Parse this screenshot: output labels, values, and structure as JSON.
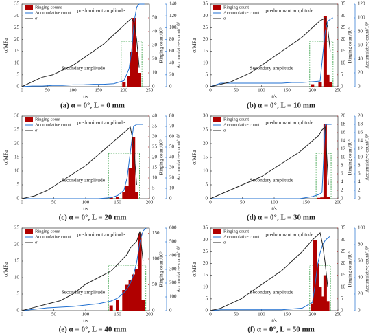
{
  "chart_data": [
    {
      "type": "combo",
      "caption": "(a) α = 0°, L = 0 mm",
      "xlabel": "t/s",
      "ylabel": "σ/MPa",
      "y2label": "Ringing count/10³",
      "y3label": "Accumulative count/10³",
      "annotations": [
        "predominant amplitude",
        "Secondary amplitude"
      ],
      "xlim": [
        0,
        250
      ],
      "xticks": [
        0,
        50,
        100,
        150,
        200,
        250
      ],
      "ylim": [
        0,
        35
      ],
      "yticks": [
        0,
        5,
        10,
        15,
        20,
        25,
        30,
        35
      ],
      "y2lim": [
        0,
        60
      ],
      "y2ticks": [
        0,
        10,
        20,
        30,
        40,
        50
      ],
      "y3lim": [
        0,
        140
      ],
      "y3ticks": [
        0,
        20,
        40,
        60,
        80,
        100,
        120,
        140
      ],
      "x": [
        0,
        20,
        40,
        60,
        80,
        100,
        120,
        140,
        160,
        180,
        200,
        210,
        215,
        220,
        225,
        230,
        240
      ],
      "series": [
        {
          "name": "Ringing counts",
          "mark": "bar",
          "axis": "y2",
          "color": "#b00000",
          "values": [
            null,
            null,
            null,
            null,
            null,
            null,
            null,
            null,
            null,
            null,
            3,
            8,
            25,
            50,
            25,
            10,
            null
          ]
        },
        {
          "name": "Accumulative count",
          "mark": "line",
          "axis": "y3",
          "color": "#1f6fd0",
          "values": [
            0,
            1,
            1,
            2,
            2,
            3,
            3,
            4,
            4,
            5,
            10,
            30,
            60,
            110,
            135,
            140,
            140
          ]
        },
        {
          "name": "σ",
          "mark": "line",
          "axis": "y",
          "color": "#222222",
          "values": [
            0,
            2,
            4,
            5,
            7,
            9,
            12,
            15,
            18,
            22,
            26,
            28,
            29,
            27,
            20,
            8,
            null
          ]
        }
      ]
    },
    {
      "type": "combo",
      "caption": "(b) α = 0°, L = 10 mm",
      "xlabel": "t/s",
      "ylabel": "σ/MPa",
      "y2label": "Ringing count/10³",
      "y3label": "Accumulative count/10³",
      "annotations": [
        "predominant amplitude",
        "Secondary amplitude"
      ],
      "xlim": [
        0,
        250
      ],
      "xticks": [
        0,
        50,
        100,
        150,
        200,
        250
      ],
      "ylim": [
        0,
        35
      ],
      "yticks": [
        0,
        5,
        10,
        15,
        20,
        25,
        30,
        35
      ],
      "y2lim": [
        0,
        35
      ],
      "y2ticks": [
        0,
        5,
        10,
        15,
        20,
        25,
        30,
        35
      ],
      "y3lim": [
        0,
        120
      ],
      "y3ticks": [
        0,
        20,
        40,
        60,
        80,
        100,
        120
      ],
      "x": [
        0,
        20,
        40,
        60,
        80,
        100,
        120,
        140,
        160,
        180,
        200,
        215,
        225,
        230,
        235,
        240
      ],
      "series": [
        {
          "name": "Ringing count",
          "mark": "bar",
          "axis": "y2",
          "color": "#b00000",
          "values": [
            null,
            null,
            null,
            null,
            null,
            null,
            null,
            null,
            null,
            null,
            1,
            2,
            30,
            5,
            2,
            null
          ]
        },
        {
          "name": "Accumulative count",
          "mark": "line",
          "axis": "y3",
          "color": "#1f6fd0",
          "values": [
            0,
            5,
            5,
            5,
            5,
            5,
            5,
            5,
            6,
            6,
            7,
            8,
            80,
            95,
            98,
            100
          ]
        },
        {
          "name": "σ",
          "mark": "line",
          "axis": "y",
          "color": "#222222",
          "values": [
            0,
            1,
            2,
            4,
            6,
            9,
            12,
            15,
            18,
            21,
            25,
            28,
            29,
            25,
            15,
            null
          ]
        }
      ]
    },
    {
      "type": "combo",
      "caption": "(c) α = 0°, L = 20 mm",
      "xlabel": "t/s",
      "ylabel": "σ/MPa",
      "y2label": "Ringing count/10³",
      "y3label": "Accumulative count/10³",
      "annotations": [
        "predominant amplitude",
        "Secondary amplitude"
      ],
      "xlim": [
        0,
        200
      ],
      "xticks": [
        0,
        50,
        100,
        150,
        200
      ],
      "ylim": [
        0,
        30
      ],
      "yticks": [
        0,
        5,
        10,
        15,
        20,
        25,
        30
      ],
      "y2lim": [
        0,
        40
      ],
      "y2ticks": [
        0,
        5,
        10,
        15,
        20,
        25,
        30,
        35,
        40
      ],
      "y3lim": [
        0,
        80
      ],
      "y3ticks": [
        0,
        10,
        20,
        30,
        40,
        50,
        60,
        70,
        80
      ],
      "x": [
        0,
        20,
        40,
        60,
        80,
        100,
        120,
        140,
        150,
        160,
        165,
        170,
        175,
        180,
        190
      ],
      "series": [
        {
          "name": "Ringing count",
          "mark": "bar",
          "axis": "y2",
          "color": "#b00000",
          "values": [
            null,
            null,
            null,
            null,
            null,
            null,
            null,
            0.5,
            1,
            3,
            6,
            15,
            30,
            3,
            null
          ]
        },
        {
          "name": "Accumulative count",
          "mark": "line",
          "axis": "y3",
          "color": "#1f6fd0",
          "values": [
            0,
            0,
            0,
            0,
            0,
            0,
            0,
            1,
            3,
            8,
            20,
            45,
            70,
            72,
            72
          ]
        },
        {
          "name": "σ",
          "mark": "line",
          "axis": "y",
          "color": "#222222",
          "values": [
            0,
            1,
            3,
            6,
            9,
            12,
            16,
            20,
            22,
            24,
            25,
            26,
            20,
            5,
            null
          ]
        }
      ]
    },
    {
      "type": "combo",
      "caption": "(d) α = 0°, L = 30 mm",
      "xlabel": "t/s",
      "ylabel": "σ/MPa",
      "y2label": "Ringing count/10³",
      "y3label": "Accumulative count/10³",
      "annotations": [
        "predominant amplitude",
        "Secondary amplitude"
      ],
      "xlim": [
        0,
        200
      ],
      "xticks": [
        0,
        50,
        100,
        150,
        200
      ],
      "ylim": [
        0,
        30
      ],
      "yticks": [
        0,
        5,
        10,
        15,
        20,
        25,
        30
      ],
      "y2lim": [
        0,
        20
      ],
      "y2ticks": [
        0,
        2,
        4,
        6,
        8,
        10,
        12,
        14,
        16,
        18,
        20
      ],
      "y3lim": [
        0,
        20
      ],
      "y3ticks": [
        0,
        2,
        4,
        6,
        8,
        10,
        12,
        14,
        16,
        18,
        20
      ],
      "x": [
        0,
        20,
        40,
        60,
        80,
        100,
        120,
        140,
        160,
        170,
        175,
        180,
        185,
        190
      ],
      "series": [
        {
          "name": "Ringing count",
          "mark": "bar",
          "axis": "y2",
          "color": "#b00000",
          "values": [
            null,
            null,
            null,
            null,
            null,
            null,
            null,
            null,
            null,
            0.2,
            0.3,
            18,
            0.5,
            null
          ]
        },
        {
          "name": "Accumulative count",
          "mark": "line",
          "axis": "y3",
          "color": "#1f6fd0",
          "values": [
            0,
            0,
            0,
            0,
            0,
            0,
            0,
            0,
            0.5,
            1,
            1.5,
            18,
            18,
            18
          ]
        },
        {
          "name": "σ",
          "mark": "line",
          "axis": "y",
          "color": "#222222",
          "values": [
            0,
            2,
            4,
            6,
            8,
            11,
            14,
            17,
            21,
            23,
            25,
            26,
            5,
            null
          ]
        }
      ]
    },
    {
      "type": "combo",
      "caption": "(e) α = 0°, L = 40 mm",
      "xlabel": "t/s",
      "ylabel": "σ/MPa",
      "y2label": "Ringing count/10³",
      "y3label": "Accumulative count/10³",
      "annotations": [
        "predominant amplitude",
        "Secondary amplitude"
      ],
      "xlim": [
        0,
        200
      ],
      "xticks": [
        0,
        50,
        100,
        150,
        200
      ],
      "ylim": [
        0,
        25
      ],
      "yticks": [
        0,
        5,
        10,
        15,
        20,
        25
      ],
      "y2lim": [
        0,
        160
      ],
      "y2ticks": [
        0,
        50,
        100,
        150
      ],
      "y3lim": [
        0,
        600
      ],
      "y3ticks": [
        0,
        100,
        200,
        300,
        400,
        500,
        600
      ],
      "x": [
        0,
        20,
        40,
        60,
        80,
        100,
        120,
        140,
        150,
        160,
        165,
        170,
        175,
        180,
        185,
        190,
        195
      ],
      "series": [
        {
          "name": "Ringing count",
          "mark": "bar",
          "axis": "y2",
          "color": "#b00000",
          "values": [
            null,
            null,
            null,
            null,
            null,
            null,
            null,
            10,
            20,
            40,
            50,
            60,
            70,
            80,
            150,
            20,
            null
          ]
        },
        {
          "name": "Accumulative count",
          "mark": "line",
          "axis": "y3",
          "color": "#1f6fd0",
          "values": [
            0,
            10,
            20,
            25,
            30,
            40,
            50,
            70,
            90,
            130,
            160,
            200,
            260,
            350,
            500,
            580,
            600
          ]
        },
        {
          "name": "σ",
          "mark": "line",
          "axis": "y",
          "color": "#222222",
          "values": [
            0,
            1,
            2,
            3,
            5,
            8,
            10,
            12,
            14,
            16,
            17,
            19,
            20,
            21,
            24,
            15,
            null
          ]
        }
      ]
    },
    {
      "type": "combo",
      "caption": "(f) α = 0°, L = 50 mm",
      "xlabel": "t/s",
      "ylabel": "σ/MPa",
      "y2label": "Ringing count/10³",
      "y3label": "Accumulative count/10³",
      "annotations": [
        "predominant amplitude",
        "Secondary amplitude"
      ],
      "xlim": [
        0,
        250
      ],
      "xticks": [
        0,
        50,
        100,
        150,
        200,
        250
      ],
      "ylim": [
        0,
        35
      ],
      "yticks": [
        0,
        5,
        10,
        15,
        20,
        25,
        30,
        35
      ],
      "y2lim": [
        0,
        35
      ],
      "y2ticks": [
        0,
        5,
        10,
        15,
        20,
        25,
        30,
        35
      ],
      "y3lim": [
        0,
        100
      ],
      "y3ticks": [
        0,
        20,
        40,
        60,
        80,
        100
      ],
      "x": [
        0,
        20,
        40,
        60,
        80,
        100,
        120,
        140,
        160,
        180,
        200,
        205,
        210,
        215,
        220,
        225,
        230,
        235
      ],
      "series": [
        {
          "name": "Ringing count",
          "mark": "bar",
          "axis": "y2",
          "color": "#b00000",
          "values": [
            null,
            null,
            null,
            null,
            null,
            null,
            null,
            null,
            null,
            null,
            3,
            30,
            20,
            10,
            6,
            15,
            4,
            null
          ]
        },
        {
          "name": "Accumulative count",
          "mark": "line",
          "axis": "y3",
          "color": "#1f6fd0",
          "values": [
            0,
            1,
            1,
            1,
            1,
            1,
            1,
            1,
            2,
            3,
            10,
            30,
            55,
            70,
            80,
            85,
            88,
            90
          ]
        },
        {
          "name": "σ",
          "mark": "line",
          "axis": "y",
          "color": "#222222",
          "values": [
            0,
            1,
            3,
            5,
            8,
            11,
            14,
            17,
            21,
            25,
            30,
            31,
            32,
            33,
            28,
            20,
            10,
            null
          ]
        }
      ]
    }
  ]
}
